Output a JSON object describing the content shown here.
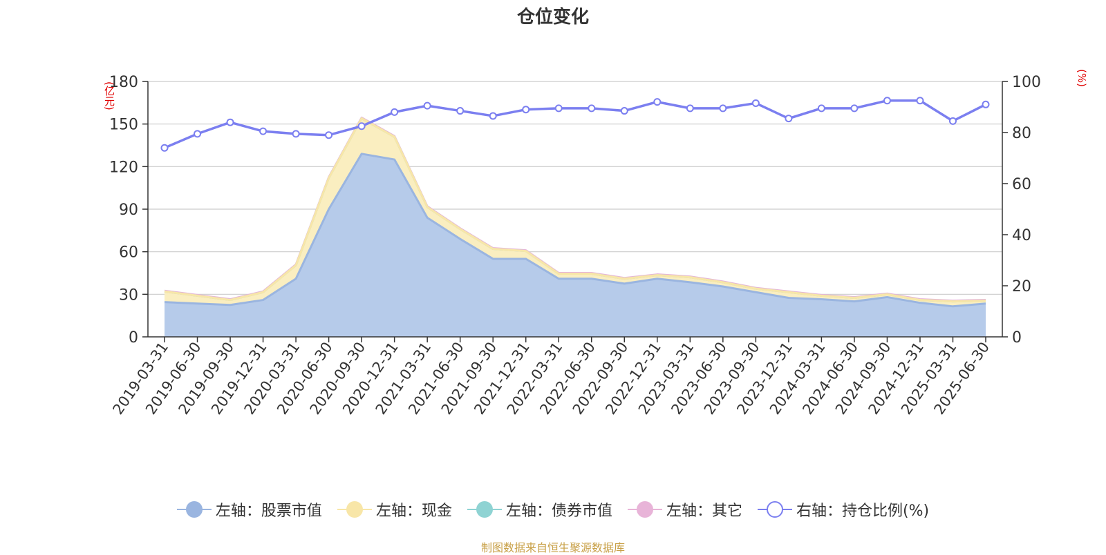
{
  "title": "仓位变化",
  "footer": "制图数据来自恒生聚源数据库",
  "left_unit": "(亿元)",
  "right_unit": "(%)",
  "colors": {
    "stock": "#9ab5e0",
    "stock_fill": "#b6cbea",
    "cash": "#f8e6a8",
    "cash_fill": "#faeec0",
    "bond": "#8fd3d3",
    "other": "#e8b4d8",
    "ratio": "#7b7ff0",
    "axis": "#333333",
    "grid": "#cccccc",
    "unit": "#e00000",
    "footer": "#c8a047"
  },
  "legend": [
    {
      "label": "左轴：股票市值",
      "icon": "filled-circle",
      "series": "stock"
    },
    {
      "label": "左轴：现金",
      "icon": "filled-circle",
      "series": "cash"
    },
    {
      "label": "左轴：债券市值",
      "icon": "filled-circle",
      "series": "bond"
    },
    {
      "label": "左轴：其它",
      "icon": "filled-circle",
      "series": "other"
    },
    {
      "label": "右轴：持仓比例(%)",
      "icon": "hollow-circle",
      "series": "ratio"
    }
  ],
  "chart_data": {
    "type": "area",
    "title": "仓位变化",
    "categories": [
      "2019-03-31",
      "2019-06-30",
      "2019-09-30",
      "2019-12-31",
      "2020-03-31",
      "2020-06-30",
      "2020-09-30",
      "2020-12-31",
      "2021-03-31",
      "2021-06-30",
      "2021-09-30",
      "2021-12-31",
      "2022-03-31",
      "2022-06-30",
      "2022-09-30",
      "2022-12-31",
      "2023-03-31",
      "2023-06-30",
      "2023-09-30",
      "2023-12-31",
      "2024-03-31",
      "2024-06-30",
      "2024-09-30",
      "2024-12-31",
      "2025-03-31",
      "2025-06-30"
    ],
    "y_left": {
      "label": "(亿元)",
      "min": 0,
      "max": 180,
      "ticks": [
        0,
        30,
        60,
        90,
        120,
        150,
        180
      ]
    },
    "y_right": {
      "label": "(%)",
      "min": 0,
      "max": 100,
      "ticks": [
        0,
        20,
        40,
        60,
        80,
        100
      ]
    },
    "grid": true,
    "legend_position": "bottom",
    "series": [
      {
        "name": "左轴：股票市值",
        "axis": "left",
        "stacked": true,
        "values": [
          24.5,
          23.5,
          22.5,
          26,
          41,
          90,
          129,
          125,
          84,
          69,
          55,
          55,
          41,
          41,
          37.5,
          41,
          38.5,
          35.5,
          31.5,
          27.5,
          26.5,
          25,
          28,
          24,
          21.5,
          23.5
        ]
      },
      {
        "name": "左轴：现金",
        "axis": "left",
        "stacked": true,
        "values": [
          7.5,
          5.5,
          3.5,
          5.5,
          9.5,
          22,
          25,
          16,
          7.5,
          7,
          7,
          5.5,
          3.5,
          3.5,
          3.5,
          2.5,
          3.5,
          3,
          2.5,
          4,
          2.5,
          2.5,
          2,
          2,
          3.5,
          2
        ]
      },
      {
        "name": "左轴：债券市值",
        "axis": "left",
        "stacked": true,
        "values": [
          0,
          0,
          0,
          0,
          0,
          0,
          0,
          0,
          0,
          0,
          0,
          0,
          0,
          0,
          0,
          0,
          0,
          0,
          0,
          0,
          0,
          0,
          0,
          0,
          0,
          0
        ]
      },
      {
        "name": "左轴：其它",
        "axis": "left",
        "stacked": true,
        "values": [
          0.5,
          0.5,
          0.5,
          0.5,
          0.5,
          0.5,
          0.5,
          0.5,
          0.5,
          0.5,
          0.5,
          0.5,
          0.5,
          0.5,
          0.5,
          0.5,
          0.5,
          0.5,
          0.5,
          0.5,
          0.5,
          0.5,
          0.5,
          0.5,
          0.5,
          0.5
        ]
      },
      {
        "name": "右轴：持仓比例(%)",
        "axis": "right",
        "type": "line",
        "values": [
          74,
          79.5,
          84,
          80.5,
          79.5,
          79,
          82.5,
          88,
          90.5,
          88.5,
          86.5,
          89,
          89.5,
          89.5,
          88.5,
          92,
          89.5,
          89.5,
          91.5,
          85.5,
          89.5,
          89.5,
          92.5,
          92.5,
          84.5,
          91
        ]
      }
    ]
  }
}
